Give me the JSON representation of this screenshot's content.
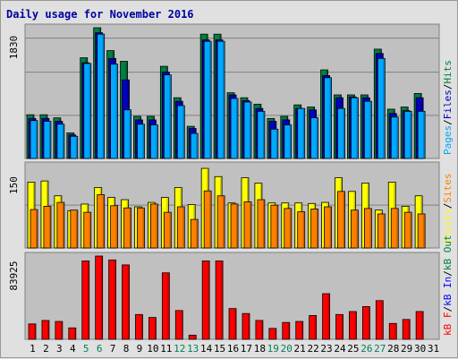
{
  "chart_data": [
    {
      "type": "bar",
      "title": "Daily usage for November 2016",
      "ylabel_max": "1830",
      "ylim": [
        0,
        1830
      ],
      "series_labels": [
        "Pages",
        "Files",
        "Hits"
      ],
      "series_colors": {
        "Pages": "#00a8ff",
        "Files": "#0000c0",
        "Hits": "#008040"
      },
      "categories": [
        "1",
        "2",
        "3",
        "4",
        "5",
        "6",
        "7",
        "8",
        "9",
        "10",
        "11",
        "12",
        "13",
        "14",
        "15",
        "16",
        "17",
        "18",
        "19",
        "20",
        "21",
        "22",
        "23",
        "24",
        "25",
        "26",
        "27",
        "28",
        "29",
        "30",
        "31"
      ],
      "series": [
        {
          "name": "Hits",
          "values": [
            612,
            612,
            568,
            358,
            1410,
            1830,
            1510,
            1360,
            590,
            590,
            1290,
            850,
            450,
            1740,
            1740,
            920,
            850,
            760,
            560,
            590,
            750,
            720,
            1240,
            890,
            890,
            890,
            1530,
            690,
            720,
            910,
            0
          ]
        },
        {
          "name": "Files",
          "values": [
            560,
            560,
            520,
            330,
            1340,
            1760,
            1400,
            1100,
            540,
            540,
            1210,
            800,
            420,
            1660,
            1660,
            890,
            810,
            700,
            520,
            540,
            700,
            680,
            1160,
            850,
            860,
            850,
            1470,
            630,
            670,
            850,
            0
          ]
        },
        {
          "name": "Pages",
          "values": [
            530,
            520,
            480,
            310,
            1330,
            1740,
            1320,
            680,
            480,
            470,
            1170,
            740,
            350,
            1640,
            1640,
            840,
            790,
            660,
            410,
            470,
            700,
            570,
            1130,
            700,
            850,
            800,
            1400,
            580,
            660,
            660,
            0
          ]
        }
      ]
    },
    {
      "type": "bar",
      "ylabel_max": "150",
      "ylim": [
        0,
        150
      ],
      "series_labels": [
        "Visits",
        "Sites"
      ],
      "series_colors": {
        "Visits": "#ffff00",
        "Sites": "#ff8000"
      },
      "categories": [
        "1",
        "2",
        "3",
        "4",
        "5",
        "6",
        "7",
        "8",
        "9",
        "10",
        "11",
        "12",
        "13",
        "14",
        "15",
        "16",
        "17",
        "18",
        "19",
        "20",
        "21",
        "22",
        "23",
        "24",
        "25",
        "26",
        "27",
        "28",
        "29",
        "30",
        "31"
      ],
      "series": [
        {
          "name": "Visits",
          "values": [
            120,
            122,
            95,
            68,
            80,
            110,
            92,
            88,
            75,
            83,
            92,
            110,
            79,
            145,
            130,
            82,
            128,
            118,
            82,
            82,
            82,
            81,
            83,
            128,
            103,
            118,
            69,
            120,
            76,
            95,
            0
          ]
        },
        {
          "name": "Sites",
          "values": [
            70,
            76,
            83,
            69,
            65,
            97,
            77,
            73,
            73,
            80,
            65,
            75,
            52,
            104,
            95,
            80,
            84,
            88,
            78,
            72,
            66,
            71,
            75,
            103,
            69,
            72,
            62,
            72,
            65,
            62,
            0
          ]
        }
      ]
    },
    {
      "type": "bar",
      "ylabel_max": "83925",
      "ylim": [
        0,
        83925
      ],
      "series_labels": [
        "kB F",
        "kB In",
        "kB Out"
      ],
      "series_colors": {
        "kB F": "#ff0000",
        "kB In": "#0000ff",
        "kB Out": "#008040"
      },
      "categories": [
        "1",
        "2",
        "3",
        "4",
        "5",
        "6",
        "7",
        "8",
        "9",
        "10",
        "11",
        "12",
        "13",
        "14",
        "15",
        "16",
        "17",
        "18",
        "19",
        "20",
        "21",
        "22",
        "23",
        "24",
        "25",
        "26",
        "27",
        "28",
        "29",
        "30",
        "31"
      ],
      "series": [
        {
          "name": "kB F",
          "values": [
            15500,
            19000,
            18000,
            11500,
            79000,
            83925,
            80000,
            75000,
            25000,
            22000,
            67000,
            29000,
            4200,
            79000,
            79000,
            31000,
            26000,
            19000,
            11000,
            17000,
            18000,
            24000,
            46000,
            25000,
            28000,
            33000,
            39000,
            16000,
            20000,
            28000,
            0
          ]
        }
      ]
    }
  ],
  "x_axis": {
    "labels": [
      "1",
      "2",
      "3",
      "4",
      "5",
      "6",
      "7",
      "8",
      "9",
      "10",
      "11",
      "12",
      "13",
      "14",
      "15",
      "16",
      "17",
      "18",
      "19",
      "20",
      "21",
      "22",
      "23",
      "24",
      "25",
      "26",
      "27",
      "28",
      "29",
      "30",
      "31"
    ],
    "weekend_days": [
      "5",
      "6",
      "12",
      "13",
      "19",
      "20",
      "26",
      "27"
    ],
    "weekday_color": "#000000",
    "weekend_color": "#00805a"
  }
}
